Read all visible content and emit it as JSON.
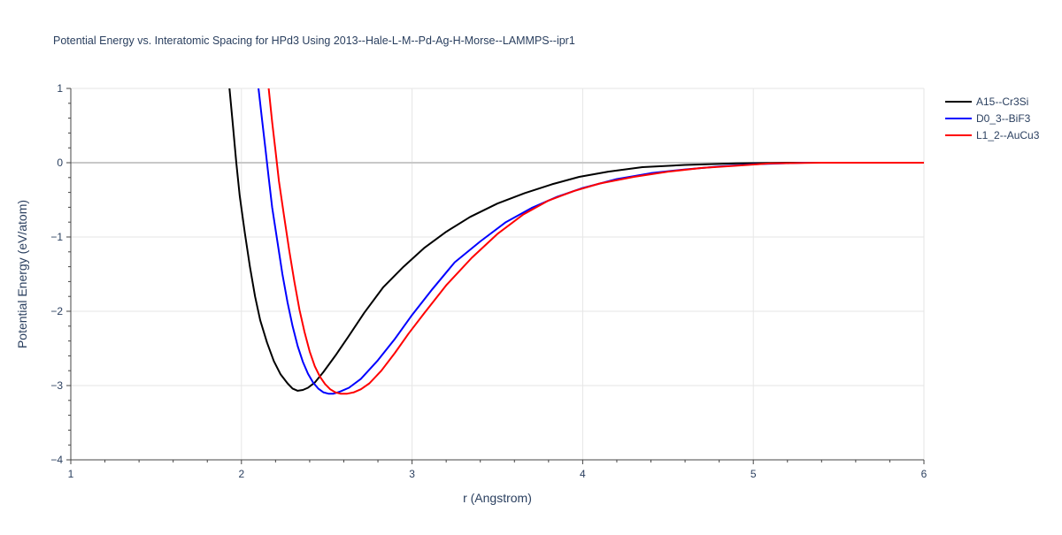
{
  "chart_data": {
    "type": "line",
    "title": "Potential Energy vs. Interatomic Spacing for HPd3 Using 2013--Hale-L-M--Pd-Ag-H-Morse--LAMMPS--ipr1",
    "xlabel": "r (Angstrom)",
    "ylabel": "Potential Energy (eV/atom)",
    "xlim": [
      1,
      6
    ],
    "ylim": [
      -4,
      1
    ],
    "xticks": [
      1,
      2,
      3,
      4,
      5,
      6
    ],
    "xtick_labels": [
      "1",
      "2",
      "3",
      "4",
      "5",
      "6"
    ],
    "yticks": [
      1,
      0,
      -1,
      -2,
      -3,
      -4
    ],
    "ytick_labels": [
      "1",
      "0",
      "−1",
      "−2",
      "−3",
      "−4"
    ],
    "grid": true,
    "legend_position": "top-right",
    "series": [
      {
        "name": "A15--Cr3Si",
        "color": "#000000",
        "x": [
          1.93,
          1.95,
          1.97,
          1.99,
          2.02,
          2.05,
          2.08,
          2.11,
          2.15,
          2.19,
          2.23,
          2.27,
          2.3,
          2.33,
          2.36,
          2.39,
          2.43,
          2.48,
          2.55,
          2.63,
          2.72,
          2.83,
          2.95,
          3.07,
          3.2,
          3.34,
          3.5,
          3.66,
          3.82,
          3.98,
          4.15,
          4.35,
          4.6,
          4.9,
          5.2,
          5.6,
          6.0
        ],
        "y": [
          1.0,
          0.5,
          0.0,
          -0.45,
          -0.95,
          -1.4,
          -1.8,
          -2.12,
          -2.42,
          -2.67,
          -2.85,
          -2.97,
          -3.04,
          -3.07,
          -3.06,
          -3.03,
          -2.96,
          -2.82,
          -2.6,
          -2.33,
          -2.02,
          -1.68,
          -1.4,
          -1.15,
          -0.93,
          -0.73,
          -0.55,
          -0.41,
          -0.29,
          -0.19,
          -0.12,
          -0.06,
          -0.03,
          -0.01,
          0.0,
          0.0,
          0.0
        ]
      },
      {
        "name": "D0_3--BiF3",
        "color": "#0000ff",
        "x": [
          2.1,
          2.12,
          2.14,
          2.16,
          2.18,
          2.21,
          2.24,
          2.27,
          2.3,
          2.33,
          2.36,
          2.39,
          2.42,
          2.45,
          2.48,
          2.51,
          2.54,
          2.58,
          2.63,
          2.7,
          2.8,
          2.9,
          3.0,
          3.12,
          3.25,
          3.4,
          3.55,
          3.7,
          3.85,
          4.0,
          4.2,
          4.4,
          4.6,
          4.8,
          5.0,
          5.3,
          5.6,
          6.0
        ],
        "y": [
          1.0,
          0.6,
          0.2,
          -0.2,
          -0.6,
          -1.05,
          -1.5,
          -1.88,
          -2.2,
          -2.47,
          -2.68,
          -2.84,
          -2.96,
          -3.04,
          -3.09,
          -3.11,
          -3.11,
          -3.08,
          -3.03,
          -2.91,
          -2.66,
          -2.37,
          -2.05,
          -1.7,
          -1.34,
          -1.06,
          -0.8,
          -0.61,
          -0.46,
          -0.34,
          -0.22,
          -0.14,
          -0.09,
          -0.05,
          -0.02,
          0.0,
          0.0,
          0.0
        ]
      },
      {
        "name": "L1_2--AuCu3",
        "color": "#ff0000",
        "x": [
          2.16,
          2.18,
          2.2,
          2.22,
          2.25,
          2.28,
          2.31,
          2.34,
          2.37,
          2.4,
          2.43,
          2.46,
          2.49,
          2.52,
          2.55,
          2.58,
          2.62,
          2.66,
          2.7,
          2.75,
          2.82,
          2.9,
          2.98,
          3.07,
          3.2,
          3.35,
          3.5,
          3.65,
          3.8,
          3.95,
          4.1,
          4.3,
          4.5,
          4.7,
          4.9,
          5.1,
          5.4,
          6.0
        ],
        "y": [
          1.0,
          0.55,
          0.15,
          -0.25,
          -0.72,
          -1.18,
          -1.6,
          -1.98,
          -2.28,
          -2.54,
          -2.74,
          -2.88,
          -2.98,
          -3.05,
          -3.09,
          -3.11,
          -3.11,
          -3.09,
          -3.05,
          -2.97,
          -2.8,
          -2.56,
          -2.3,
          -2.03,
          -1.65,
          -1.28,
          -0.96,
          -0.7,
          -0.51,
          -0.38,
          -0.28,
          -0.19,
          -0.12,
          -0.07,
          -0.04,
          -0.01,
          0.0,
          0.0
        ]
      }
    ]
  }
}
